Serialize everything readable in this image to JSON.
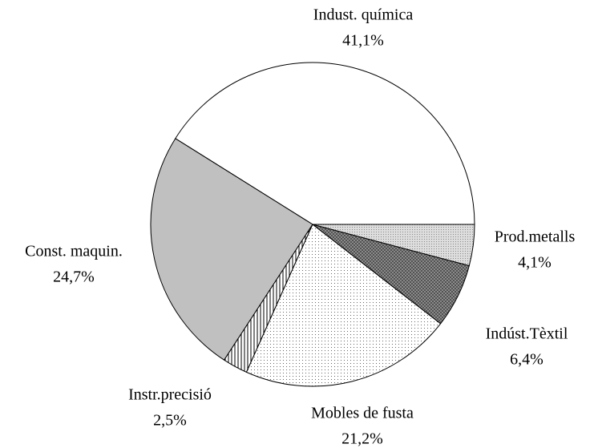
{
  "chart_data": {
    "type": "pie",
    "categories": [
      "Indust. química",
      "Const. maquin.",
      "Instr.precisió",
      "Mobles de fusta",
      "Indúst.Tèxtil",
      "Prod.metalls"
    ],
    "values": [
      41.1,
      24.7,
      2.5,
      21.2,
      6.4,
      4.1
    ],
    "value_labels": [
      "41,1%",
      "24,7%",
      "2,5%",
      "21,2%",
      "6,4%",
      "4,1%"
    ],
    "colors": [
      "#ffffff",
      "#c0c0c0",
      "#ffffff",
      "#ffffff",
      "#888888",
      "#d8d8d8"
    ],
    "patterns": [
      "solid",
      "solid",
      "vertical-lines",
      "dots",
      "crosshatch",
      "fine-dots"
    ],
    "start_angle": 0,
    "direction": "counterclockwise"
  }
}
